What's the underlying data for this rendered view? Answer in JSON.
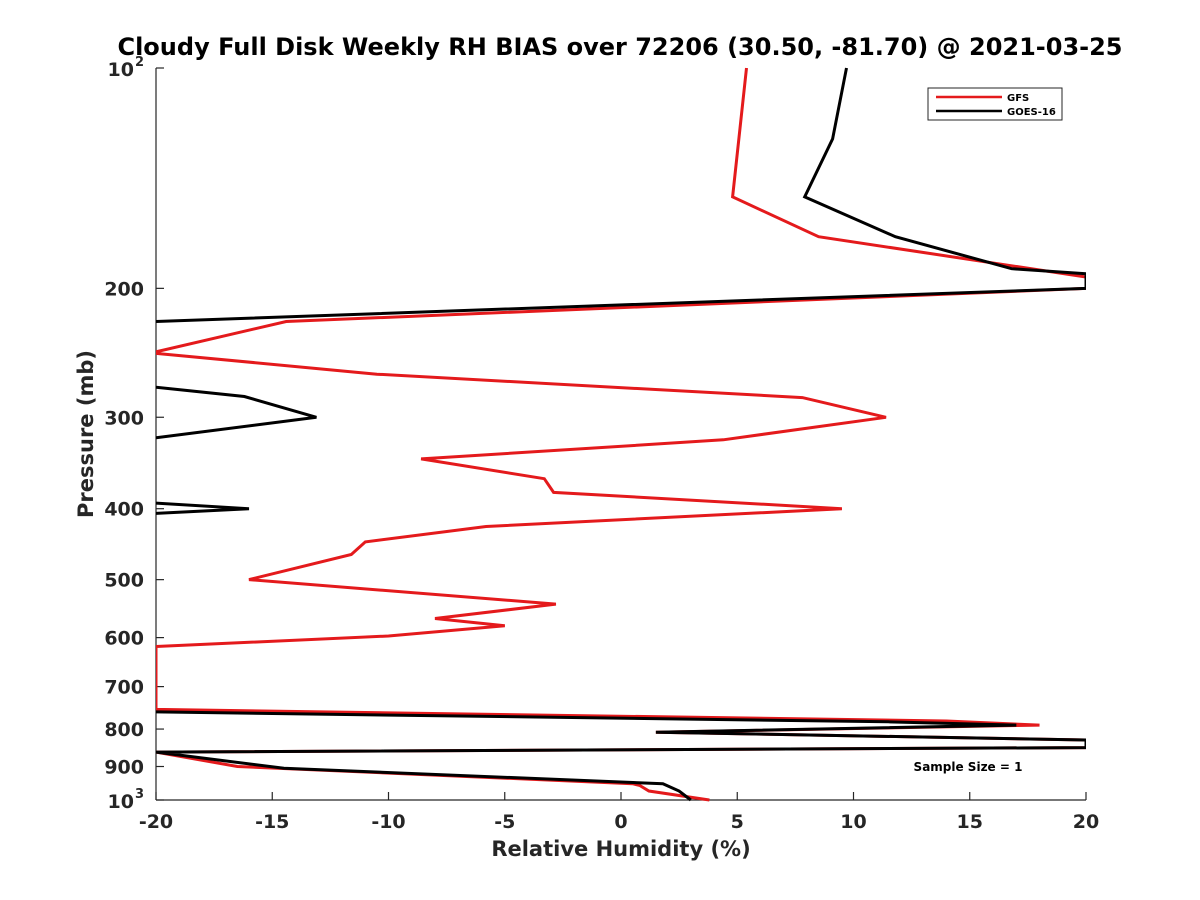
{
  "chart_data": {
    "type": "line",
    "title": "Cloudy Full Disk Weekly RH BIAS over 72206 (30.50, -81.70) @ 2021-03-25",
    "xlabel": "Relative Humidity (%)",
    "ylabel": "Pressure (mb)",
    "xlim": [
      -20,
      20
    ],
    "ylim": [
      100,
      1000
    ],
    "y_scale": "log",
    "y_reversed": true,
    "grid": false,
    "legend_position": "top-right",
    "xticks": [
      -20,
      -15,
      -10,
      -5,
      0,
      5,
      10,
      15,
      20
    ],
    "yticks": [
      {
        "value": 100,
        "label": "10",
        "exp": "2"
      },
      {
        "value": 200,
        "label": "200",
        "exp": ""
      },
      {
        "value": 300,
        "label": "300",
        "exp": ""
      },
      {
        "value": 400,
        "label": "400",
        "exp": ""
      },
      {
        "value": 500,
        "label": "500",
        "exp": ""
      },
      {
        "value": 600,
        "label": "600",
        "exp": ""
      },
      {
        "value": 700,
        "label": "700",
        "exp": ""
      },
      {
        "value": 800,
        "label": "800",
        "exp": ""
      },
      {
        "value": 900,
        "label": "900",
        "exp": ""
      },
      {
        "value": 1000,
        "label": "10",
        "exp": "3"
      }
    ],
    "series": [
      {
        "name": "GFS",
        "color": "#e41a1c",
        "points": [
          [
            5.4,
            100
          ],
          [
            4.8,
            150
          ],
          [
            8.5,
            170
          ],
          [
            20,
            193
          ],
          [
            20,
            200
          ],
          [
            -14.4,
            222
          ],
          [
            -20.2,
            245
          ],
          [
            -10.5,
            262
          ],
          [
            7.8,
            282
          ],
          [
            11.4,
            300
          ],
          [
            4.4,
            322
          ],
          [
            -8.6,
            342
          ],
          [
            -3.3,
            364
          ],
          [
            -2.9,
            380
          ],
          [
            9.5,
            400
          ],
          [
            -5.8,
            423
          ],
          [
            -11.0,
            444
          ],
          [
            -11.6,
            462
          ],
          [
            -16.0,
            500
          ],
          [
            -2.8,
            540
          ],
          [
            -8.0,
            565
          ],
          [
            -5.0,
            578
          ],
          [
            -10.0,
            597
          ],
          [
            -20,
            617
          ],
          [
            -20,
            752
          ],
          [
            14.0,
            780
          ],
          [
            18.0,
            790
          ],
          [
            1.5,
            808
          ],
          [
            20,
            828
          ],
          [
            20,
            848
          ],
          [
            -20,
            860
          ],
          [
            -16.5,
            900
          ],
          [
            0.5,
            950
          ],
          [
            0.8,
            955
          ],
          [
            1.2,
            972
          ],
          [
            3.8,
            1000
          ]
        ]
      },
      {
        "name": "GOES-16",
        "color": "#000000",
        "points": [
          [
            9.7,
            100
          ],
          [
            9.1,
            125
          ],
          [
            7.9,
            150
          ],
          [
            11.8,
            170
          ],
          [
            16.8,
            188
          ],
          [
            20,
            191
          ],
          [
            20,
            200
          ],
          [
            -20,
            222
          ],
          [
            null,
            null
          ],
          [
            -20,
            273
          ],
          [
            -16.2,
            281
          ],
          [
            -13.1,
            300
          ],
          [
            -20,
            320
          ],
          [
            null,
            null
          ],
          [
            -20,
            393
          ],
          [
            -16,
            400
          ],
          [
            -20,
            406
          ],
          [
            null,
            null
          ],
          [
            -20,
            758
          ],
          [
            11.5,
            782
          ],
          [
            17.0,
            790
          ],
          [
            1.5,
            808
          ],
          [
            20,
            828
          ],
          [
            20,
            848
          ],
          [
            -20,
            860
          ],
          [
            -14.5,
            905
          ],
          [
            1.8,
            950
          ],
          [
            2.5,
            972
          ],
          [
            3.0,
            1000
          ]
        ]
      }
    ],
    "annotation": "Sample Size = 1"
  }
}
